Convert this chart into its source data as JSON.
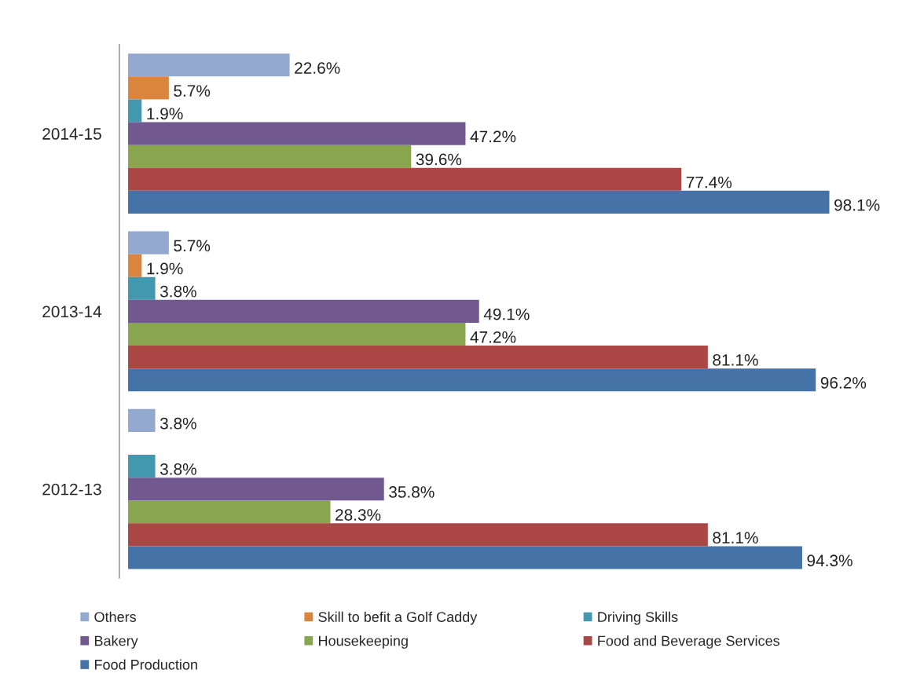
{
  "chart_data": {
    "type": "bar",
    "orientation": "horizontal",
    "categories": [
      "2014-15",
      "2013-14",
      "2012-13"
    ],
    "series": [
      {
        "name": "Others",
        "color": "#93a9cf",
        "values": [
          22.6,
          5.7,
          3.8
        ],
        "value_labels": [
          "22.6%",
          "5.7%",
          "3.8%"
        ]
      },
      {
        "name": "Skill to befit a Golf Caddy",
        "color": "#db843d",
        "values": [
          5.7,
          1.9,
          null
        ],
        "value_labels": [
          "5.7%",
          "1.9%",
          null
        ]
      },
      {
        "name": "Driving Skills",
        "color": "#4198af",
        "values": [
          1.9,
          3.8,
          3.8
        ],
        "value_labels": [
          "1.9%",
          "3.8%",
          "3.8%"
        ]
      },
      {
        "name": "Bakery",
        "color": "#71588f",
        "values": [
          47.2,
          49.1,
          35.8
        ],
        "value_labels": [
          "47.2%",
          "49.1%",
          "35.8%"
        ]
      },
      {
        "name": "Housekeeping",
        "color": "#89a54e",
        "values": [
          39.6,
          47.2,
          28.3
        ],
        "value_labels": [
          "39.6%",
          "47.2%",
          "28.3%"
        ]
      },
      {
        "name": "Food and Beverage Services",
        "color": "#aa4643",
        "values": [
          77.4,
          81.1,
          81.1
        ],
        "value_labels": [
          "77.4%",
          "81.1%",
          "81.1%"
        ]
      },
      {
        "name": "Food Production",
        "color": "#4572a7",
        "values": [
          98.1,
          96.2,
          94.3
        ],
        "value_labels": [
          "98.1%",
          "96.2%",
          "94.3%"
        ]
      }
    ],
    "tick_labels": "y",
    "legend": "bottom"
  }
}
